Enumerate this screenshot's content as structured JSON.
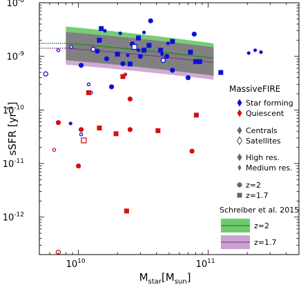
{
  "chart_data": {
    "type": "scatter",
    "xlabel_main": "M",
    "xlabel_sub": "star",
    "xlabel_unit_main": "[M",
    "xlabel_unit_sub": "sun",
    "xlabel_close": "]",
    "ylabel": "sSFR [yr",
    "ylabel_sup": "-1",
    "ylabel_close": "]",
    "x_scale": "log",
    "y_scale": "log",
    "xlim": [
      5000000000.0,
      500000000000.0
    ],
    "ylim": [
      2e-13,
      1e-08
    ],
    "x_ticks": [
      {
        "value": 10000000000.0,
        "base": "10",
        "exp": "10"
      },
      {
        "value": 100000000000.0,
        "base": "10",
        "exp": "11"
      }
    ],
    "y_ticks": [
      {
        "value": 1e-08,
        "base": "10",
        "exp": "-8"
      },
      {
        "value": 1e-09,
        "base": "10",
        "exp": "-9"
      },
      {
        "value": 1e-10,
        "base": "10",
        "exp": "-10"
      },
      {
        "value": 1e-11,
        "base": "10",
        "exp": "-11"
      },
      {
        "value": 1e-12,
        "base": "10",
        "exp": "-12"
      }
    ],
    "colors": {
      "star_forming": "#0a10d8",
      "quiescent": "#d41010",
      "band_z2_fill": "#6fca6f",
      "band_z2_line": "#1f8a1f",
      "band_z17_fill": "#c9a3cf",
      "band_z17_line": "#8a3a8a",
      "overlap_fill": "#808080",
      "legend_symbol": "#666666"
    },
    "schreiber_bands": [
      {
        "name": "z=2",
        "x": [
          8000000000.0,
          110000000000.0
        ],
        "y_center": [
          1.75e-09,
          1.06e-09
        ],
        "y_upper": [
          3.6e-09,
          2e-09
        ],
        "y_lower": [
          8.5e-10,
          5e-10
        ],
        "ext_x": [
          5000000000.0,
          8000000000.0
        ],
        "ext_y": [
          1.75e-09,
          1.75e-09
        ]
      },
      {
        "name": "z=1.7",
        "x": [
          8000000000.0,
          110000000000.0
        ],
        "y_center": [
          1.42e-09,
          8.8e-10
        ],
        "y_upper": [
          2.85e-09,
          1.7e-09
        ],
        "y_lower": [
          7e-10,
          4.2e-10
        ],
        "ext_x": [
          5000000000.0,
          8000000000.0
        ],
        "ext_y": [
          1.42e-09,
          1.42e-09
        ]
      }
    ],
    "series": [
      {
        "name": "Star forming, z=2, high res.",
        "color": "star_forming",
        "marker": "circle",
        "filled": true,
        "size": "high",
        "points": [
          [
            10500000000.0,
            6.8e-10
          ],
          [
            14000000000.0,
            1.25e-09
          ],
          [
            16500000000.0,
            9e-10
          ],
          [
            18000000000.0,
            2.7e-10
          ],
          [
            22000000000.0,
            7.3e-10
          ],
          [
            26000000000.0,
            1.7e-09
          ],
          [
            30000000000.0,
            1e-09
          ],
          [
            36000000000.0,
            4.6e-09
          ],
          [
            48000000000.0,
            1e-09
          ],
          [
            53000000000.0,
            5.5e-10
          ],
          [
            70000000000.0,
            4e-10
          ],
          [
            78000000000.0,
            2.6e-09
          ]
        ]
      },
      {
        "name": "Star forming, z=2, medium res.",
        "color": "star_forming",
        "marker": "circle",
        "filled": true,
        "size": "medium",
        "points": [
          [
            8700000000.0,
            5.6e-11
          ],
          [
            16000000000.0,
            3e-09
          ],
          [
            21000000000.0,
            2.7e-09
          ],
          [
            24000000000.0,
            1.05e-09
          ],
          [
            29000000000.0,
            1.3e-09
          ],
          [
            32000000000.0,
            2.8e-09
          ],
          [
            44000000000.0,
            1.1e-09
          ],
          [
            49000000000.0,
            1.75e-09
          ],
          [
            205000000000.0,
            1.15e-09
          ],
          [
            230000000000.0,
            1.3e-09
          ],
          [
            255000000000.0,
            1.2e-09
          ]
        ]
      },
      {
        "name": "Star forming, z=2, satellites",
        "color": "star_forming",
        "marker": "circle",
        "filled": false,
        "size": "high",
        "points": [
          [
            5600000000.0,
            4.7e-10
          ],
          [
            13000000000.0,
            1.35e-09
          ],
          [
            45000000000.0,
            8.4e-10
          ]
        ]
      },
      {
        "name": "Star forming, z=2, satellites medium",
        "color": "star_forming",
        "marker": "circle",
        "filled": false,
        "size": "medium",
        "points": [
          [
            7000000000.0,
            1.3e-09
          ],
          [
            8800000000.0,
            1.5e-09
          ],
          [
            12000000000.0,
            3e-10
          ],
          [
            12500000000.0,
            2.1e-10
          ],
          [
            10500000000.0,
            3.5e-11
          ]
        ]
      },
      {
        "name": "Star forming, z=1.7",
        "color": "star_forming",
        "marker": "square",
        "filled": true,
        "size": "high",
        "points": [
          [
            14500000000.0,
            2e-09
          ],
          [
            15000000000.0,
            3.3e-09
          ],
          [
            20000000000.0,
            1.1e-09
          ],
          [
            25000000000.0,
            7.2e-10
          ],
          [
            29000000000.0,
            2.2e-09
          ],
          [
            32000000000.0,
            1.3e-09
          ],
          [
            35000000000.0,
            1.6e-09
          ],
          [
            43000000000.0,
            1.3e-09
          ],
          [
            53000000000.0,
            1.9e-09
          ],
          [
            73000000000.0,
            1.2e-09
          ],
          [
            80000000000.0,
            8e-10
          ],
          [
            86000000000.0,
            8e-10
          ],
          [
            125000000000.0,
            5e-10
          ]
        ]
      },
      {
        "name": "Star forming, z=1.7, satellites",
        "color": "star_forming",
        "marker": "square",
        "filled": false,
        "size": "high",
        "points": [
          [
            27000000000.0,
            1.5e-09
          ]
        ]
      },
      {
        "name": "Quiescent, z=2, high res.",
        "color": "quiescent",
        "marker": "circle",
        "filled": true,
        "size": "high",
        "points": [
          [
            7000000000.0,
            5.8e-11
          ],
          [
            10500000000.0,
            4.3e-11
          ],
          [
            10000000000.0,
            9e-12
          ],
          [
            25000000000.0,
            1.6e-10
          ],
          [
            25000000000.0,
            4.3e-11
          ],
          [
            75000000000.0,
            1.7e-11
          ]
        ]
      },
      {
        "name": "Quiescent, z=2, medium res.",
        "color": "quiescent",
        "marker": "circle",
        "filled": true,
        "size": "medium",
        "points": [
          [
            23000000000.0,
            4.6e-10
          ]
        ]
      },
      {
        "name": "Quiescent, z=2, satellites",
        "color": "quiescent",
        "marker": "circle",
        "filled": false,
        "size": "high",
        "points": [
          [
            7000000000.0,
            2.2e-13
          ]
        ]
      },
      {
        "name": "Quiescent, z=2, satellites medium",
        "color": "quiescent",
        "marker": "circle",
        "filled": false,
        "size": "medium",
        "points": [
          [
            6500000000.0,
            1.8e-11
          ]
        ]
      },
      {
        "name": "Quiescent, z=1.7",
        "color": "quiescent",
        "marker": "square",
        "filled": true,
        "size": "high",
        "points": [
          [
            12000000000.0,
            2.1e-10
          ],
          [
            14500000000.0,
            4.6e-11
          ],
          [
            19500000000.0,
            3.6e-11
          ],
          [
            22000000000.0,
            4.2e-10
          ],
          [
            23500000000.0,
            1.3e-12
          ],
          [
            41000000000.0,
            4.1e-11
          ],
          [
            81000000000.0,
            8e-11
          ]
        ]
      },
      {
        "name": "Quiescent, z=1.7, satellites",
        "color": "quiescent",
        "marker": "square",
        "filled": false,
        "size": "high",
        "points": [
          [
            11000000000.0,
            2.7e-11
          ]
        ]
      }
    ],
    "legend": {
      "title": "MassiveFIRE",
      "items": [
        {
          "label": "Star forming",
          "symbol": "diamond",
          "filled": true,
          "color": "star_forming"
        },
        {
          "label": "Quiescent",
          "symbol": "diamond",
          "filled": true,
          "color": "quiescent"
        },
        {
          "label": "Centrals",
          "symbol": "diamond",
          "filled": true,
          "color": "legend_symbol"
        },
        {
          "label": "Satellites",
          "symbol": "diamond",
          "filled": false,
          "color": "legend_symbol"
        },
        {
          "label": "High res.",
          "symbol": "diamond",
          "filled": true,
          "color": "legend_symbol"
        },
        {
          "label": "Medium res.",
          "symbol": "diamond-small",
          "filled": true,
          "color": "legend_symbol"
        },
        {
          "label": "z=2",
          "symbol": "circle",
          "filled": true,
          "color": "legend_symbol"
        },
        {
          "label": "z=1.7",
          "symbol": "square",
          "filled": true,
          "color": "legend_symbol"
        }
      ],
      "band_title": "Schreiber et al. 2015",
      "band_items": [
        {
          "label": "z=2",
          "fill": "band_z2_fill",
          "line": "band_z2_line",
          "text_color": "band_z2_line"
        },
        {
          "label": "z=1.7",
          "fill": "band_z17_fill",
          "line": "band_z17_line",
          "text_color": "band_z17_line"
        }
      ]
    }
  }
}
